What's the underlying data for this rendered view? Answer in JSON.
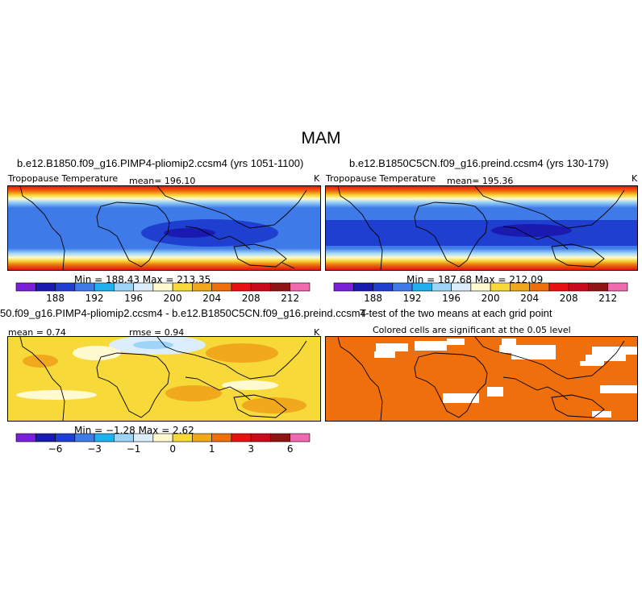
{
  "figure": {
    "title": "MAM"
  },
  "palette_levels": [
    "#7a20d8",
    "#1a1ab0",
    "#1f3fd0",
    "#3e7ae8",
    "#20b0f0",
    "#9ed4f8",
    "#dceefc",
    "#fffad0",
    "#f7d93a",
    "#f2a81c",
    "#ee6f0c",
    "#e81010",
    "#c80a1a",
    "#901414",
    "#f06ab0"
  ],
  "panels": [
    {
      "id": "pliomip",
      "title": "b.e12.B1850.f09_g16.PIMP4-pliomip2.ccsm4 (yrs 1051-1100)",
      "left_label": "Tropopause Temperature",
      "center_label": "mean=  196.10",
      "right_label": "K",
      "minmax": "Min =  188.43  Max =  213.35",
      "colorbar_ticks": [
        "188",
        "192",
        "196",
        "200",
        "204",
        "208",
        "212"
      ]
    },
    {
      "id": "preind",
      "title": "b.e12.B1850C5CN.f09_g16.preind.ccsm4 (yrs 130-179)",
      "left_label": "Tropopause Temperature",
      "center_label": "mean=  195.36",
      "right_label": "K",
      "minmax": "Min =  187.68  Max =  212.09",
      "colorbar_ticks": [
        "188",
        "192",
        "196",
        "200",
        "204",
        "208",
        "212"
      ]
    },
    {
      "id": "diff",
      "title": "50.f09_g16.PIMP4-pliomip2.ccsm4 - b.e12.B1850C5CN.f09_g16.preind.ccsm4",
      "left_label": "mean =   0.74",
      "center_label": "rmse =   0.94",
      "right_label": "K",
      "minmax": "Min =   −1.28  Max =    2.62",
      "colorbar_ticks": [
        "−6",
        "−3",
        "−1",
        "0",
        "1",
        "3",
        "6"
      ]
    },
    {
      "id": "ttest",
      "title": "T-test of the two means at each grid point",
      "subtitle": "Colored cells are significant at the 0.05 level"
    }
  ],
  "chart_data": [
    {
      "type": "heatmap",
      "title": "b.e12.B1850.f09_g16.PIMP4-pliomip2.ccsm4 (yrs 1051-1100)",
      "variable": "Tropopause Temperature",
      "units": "K",
      "mean": 196.1,
      "min": 188.43,
      "max": 213.35,
      "levels": [
        186,
        188,
        190,
        192,
        194,
        196,
        198,
        200,
        202,
        204,
        206,
        208,
        210,
        212,
        214
      ],
      "colorbar_ticks": [
        188,
        192,
        196,
        200,
        204,
        208,
        212
      ]
    },
    {
      "type": "heatmap",
      "title": "b.e12.B1850C5CN.f09_g16.preind.ccsm4 (yrs 130-179)",
      "variable": "Tropopause Temperature",
      "units": "K",
      "mean": 195.36,
      "min": 187.68,
      "max": 212.09,
      "levels": [
        186,
        188,
        190,
        192,
        194,
        196,
        198,
        200,
        202,
        204,
        206,
        208,
        210,
        212,
        214
      ],
      "colorbar_ticks": [
        188,
        192,
        196,
        200,
        204,
        208,
        212
      ]
    },
    {
      "type": "heatmap",
      "title": "50.f09_g16.PIMP4-pliomip2.ccsm4 - b.e12.B1850C5CN.f09_g16.preind.ccsm4",
      "units": "K",
      "mean": 0.74,
      "rmse": 0.94,
      "min": -1.28,
      "max": 2.62,
      "levels": [
        -8,
        -6,
        -4,
        -3,
        -2,
        -1,
        -0.5,
        0,
        0.5,
        1,
        2,
        3,
        4,
        6,
        8
      ],
      "colorbar_ticks": [
        -6,
        -3,
        -1,
        0,
        1,
        3,
        6
      ]
    },
    {
      "type": "heatmap",
      "title": "T-test of the two means at each grid point",
      "subtitle": "Colored cells are significant at the 0.05 level",
      "significance_level": 0.05
    }
  ]
}
